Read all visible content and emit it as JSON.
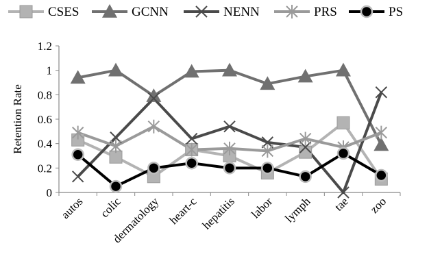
{
  "chart_data": {
    "type": "line",
    "title": "",
    "xlabel": "",
    "ylabel": "Retention Rate",
    "ylim": [
      0,
      1.2
    ],
    "yticks": [
      "0",
      "0.2",
      "0.4",
      "0.6",
      "0.8",
      "1",
      "1.2"
    ],
    "grid": false,
    "legend_position": "top",
    "categories": [
      "autos",
      "colic",
      "dermatology",
      "heart-c",
      "hepatitis",
      "labor",
      "lymph",
      "tae",
      "zoo"
    ],
    "series": [
      {
        "name": "CSES",
        "marker": "square",
        "color": "#b3b3b3",
        "values": [
          0.43,
          0.29,
          0.13,
          0.35,
          0.3,
          0.16,
          0.33,
          0.57,
          0.11
        ]
      },
      {
        "name": "GCNN",
        "marker": "triangle",
        "color": "#707070",
        "values": [
          0.94,
          1.0,
          0.79,
          0.99,
          1.0,
          0.89,
          0.95,
          1.0,
          0.39
        ]
      },
      {
        "name": "NENN",
        "marker": "x",
        "color": "#4a4a4a",
        "values": [
          0.13,
          0.45,
          0.77,
          0.44,
          0.54,
          0.41,
          0.37,
          0.0,
          0.82
        ]
      },
      {
        "name": "PRS",
        "marker": "star",
        "color": "#9a9a9a",
        "values": [
          0.49,
          0.38,
          0.54,
          0.35,
          0.36,
          0.34,
          0.44,
          0.37,
          0.49
        ]
      },
      {
        "name": "PS",
        "marker": "circle",
        "color": "#000000",
        "values": [
          0.31,
          0.05,
          0.2,
          0.24,
          0.2,
          0.2,
          0.13,
          0.32,
          0.14
        ]
      }
    ]
  }
}
